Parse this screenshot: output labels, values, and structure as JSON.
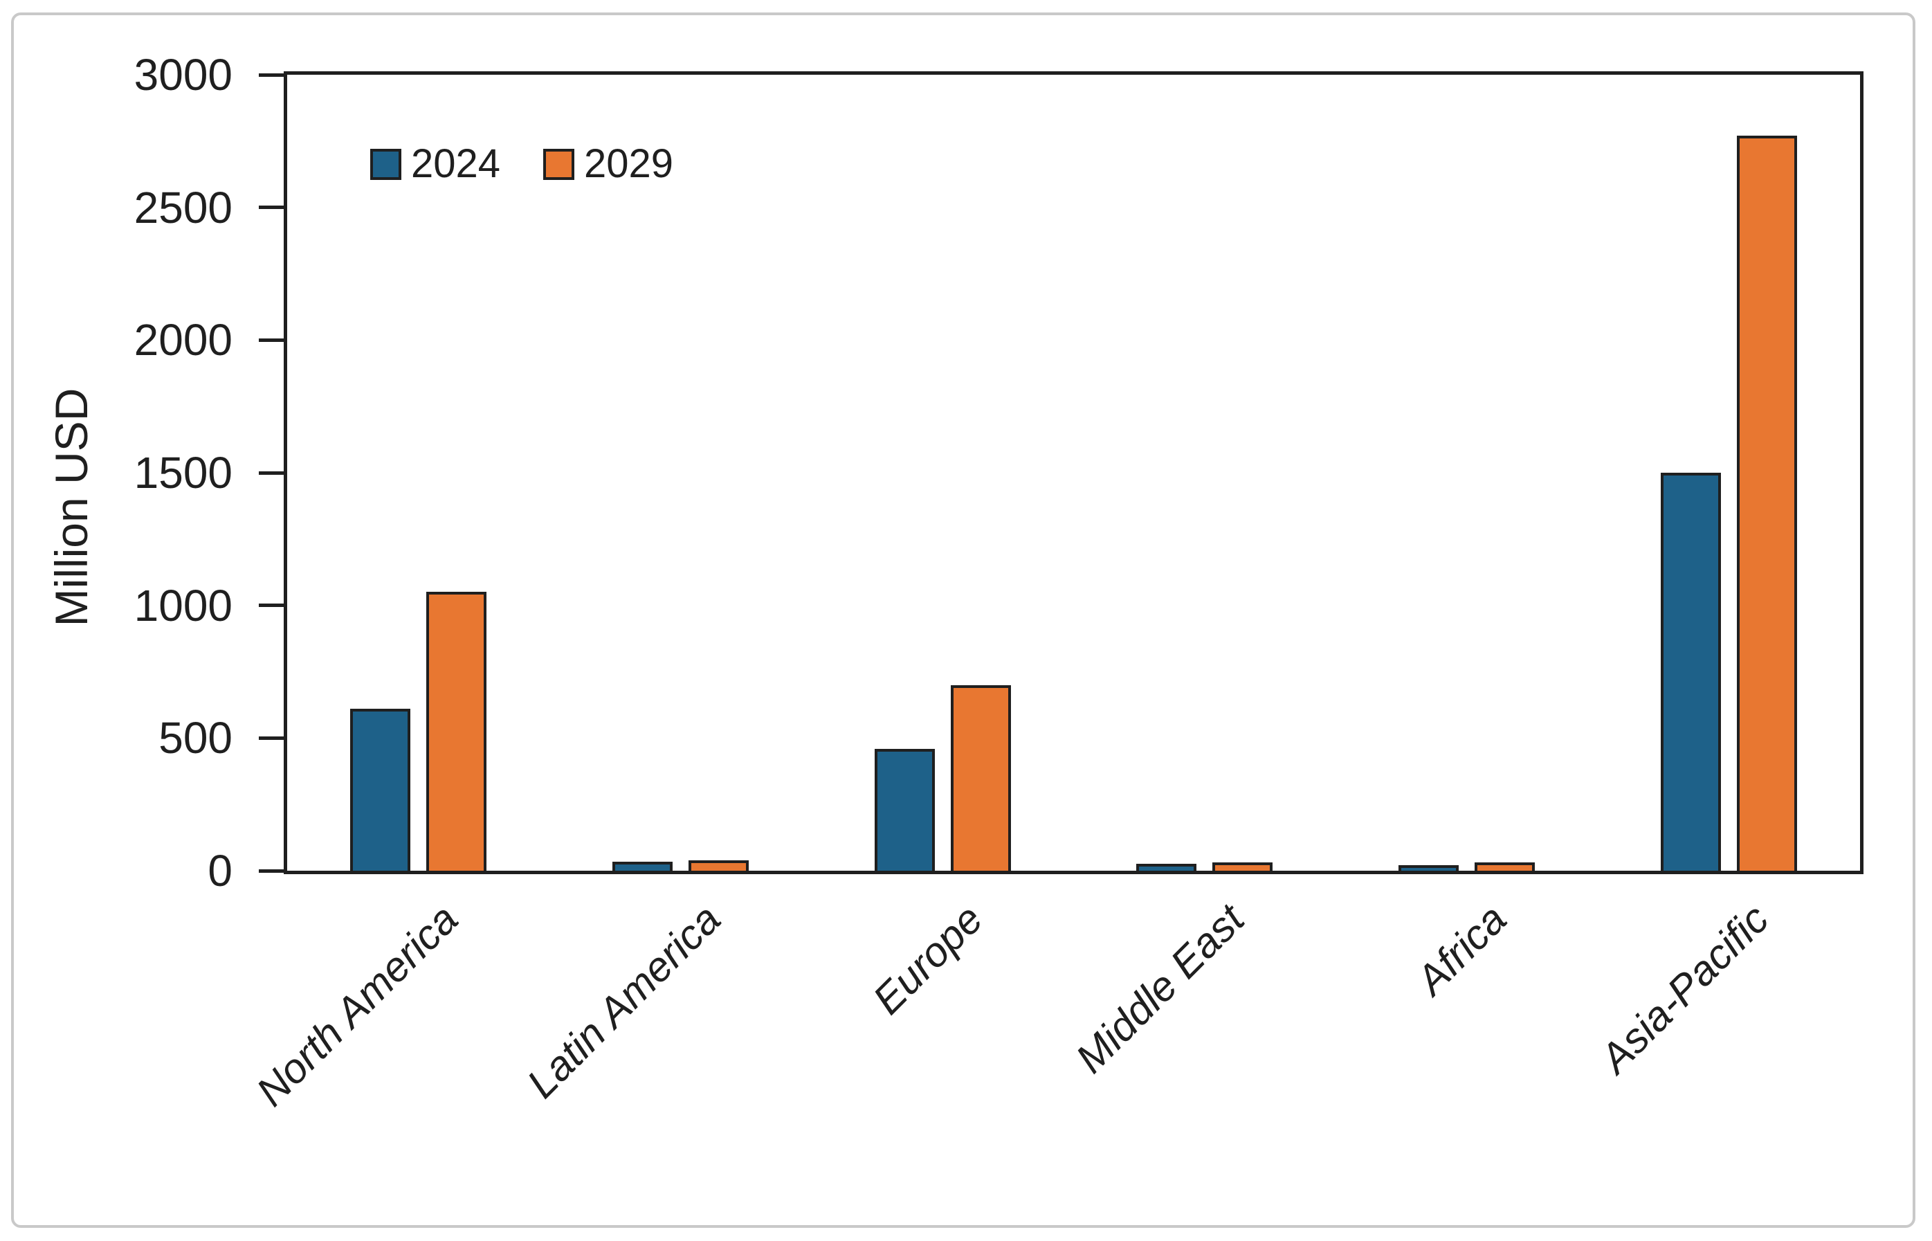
{
  "chart_data": {
    "type": "bar",
    "title": "",
    "xlabel": "",
    "ylabel": "Million USD",
    "categories": [
      "North America",
      "Latin America",
      "Europe",
      "Middle East",
      "Africa",
      "Asia-Pacific"
    ],
    "series": [
      {
        "name": "2024",
        "color": "#1E6189",
        "values": [
          610,
          35,
          460,
          25,
          20,
          1500
        ]
      },
      {
        "name": "2029",
        "color": "#E87731",
        "values": [
          1050,
          40,
          700,
          30,
          30,
          2770
        ]
      }
    ],
    "ylim": [
      0,
      3000
    ],
    "yticks": [
      0,
      500,
      1000,
      1500,
      2000,
      2500,
      3000
    ],
    "grid": false,
    "legend_position": "inside-top-left",
    "axis_color": "#1f1f1f",
    "frame_color": "#c9c9c9",
    "background_color": "#ffffff"
  }
}
